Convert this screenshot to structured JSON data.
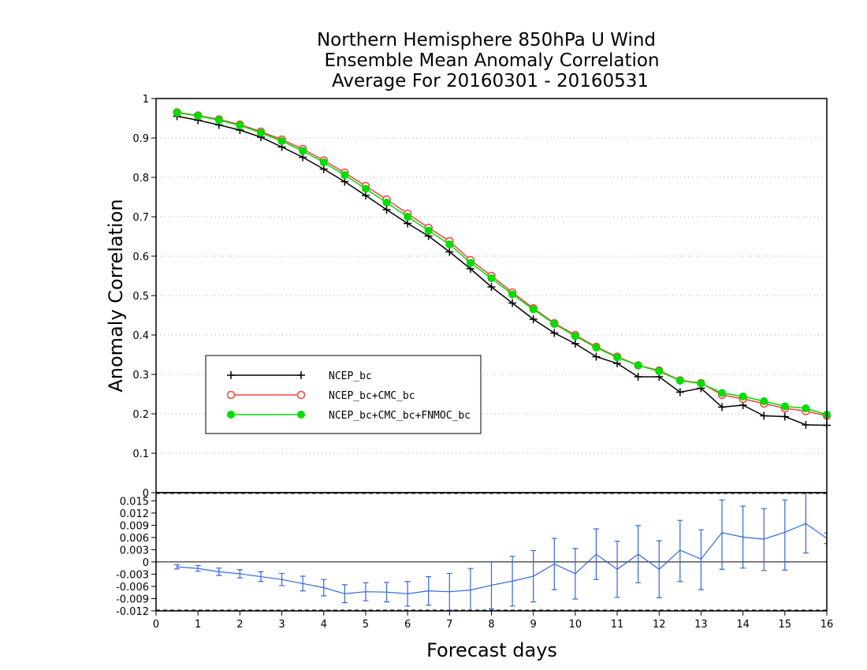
{
  "chart_data": [
    {
      "type": "line",
      "title": [
        "Northern Hemisphere 850hPa U Wind",
        "Ensemble Mean Anomaly Correlation",
        "Average For 20160301 - 20160531"
      ],
      "xlabel": "Forecast days",
      "ylabel": "Anomaly Correlation",
      "xlim": [
        0,
        16
      ],
      "ylim": [
        0,
        1
      ],
      "yticks": [
        "0",
        "0.1",
        "0.2",
        "0.3",
        "0.4",
        "0.5",
        "0.6",
        "0.7",
        "0.8",
        "0.9",
        "1"
      ],
      "grid": true,
      "legend_position": "middle-left",
      "x": [
        0.5,
        1,
        1.5,
        2,
        2.5,
        3,
        3.5,
        4,
        4.5,
        5,
        5.5,
        6,
        6.5,
        7,
        7.5,
        8,
        8.5,
        9,
        9.5,
        10,
        10.5,
        11,
        11.5,
        12,
        12.5,
        13,
        13.5,
        14,
        14.5,
        15,
        15.5,
        16
      ],
      "series": [
        {
          "name": "NCEP_bc",
          "color": "#000000",
          "marker": "plus",
          "values": [
            0.955,
            0.945,
            0.933,
            0.92,
            0.902,
            0.877,
            0.851,
            0.821,
            0.789,
            0.754,
            0.718,
            0.683,
            0.651,
            0.611,
            0.568,
            0.522,
            0.481,
            0.44,
            0.405,
            0.378,
            0.345,
            0.328,
            0.294,
            0.294,
            0.255,
            0.265,
            0.217,
            0.222,
            0.195,
            0.193,
            0.172,
            0.171
          ]
        },
        {
          "name": "NCEP_bc+CMC_bc",
          "color": "#ff4040",
          "marker": "open-circle",
          "values": [
            0.965,
            0.957,
            0.947,
            0.934,
            0.916,
            0.896,
            0.872,
            0.843,
            0.812,
            0.778,
            0.744,
            0.708,
            0.672,
            0.638,
            0.59,
            0.55,
            0.508,
            0.468,
            0.43,
            0.4,
            0.37,
            0.345,
            0.323,
            0.31,
            0.285,
            0.278,
            0.248,
            0.238,
            0.226,
            0.214,
            0.207,
            0.195
          ]
        },
        {
          "name": "NCEP_bc+CMC_bc+FNMOC_bc",
          "color": "#00dd00",
          "marker": "filled-circle",
          "values": [
            0.964,
            0.956,
            0.945,
            0.932,
            0.913,
            0.892,
            0.867,
            0.838,
            0.806,
            0.771,
            0.736,
            0.7,
            0.665,
            0.63,
            0.583,
            0.544,
            0.503,
            0.465,
            0.428,
            0.397,
            0.368,
            0.343,
            0.323,
            0.308,
            0.284,
            0.277,
            0.253,
            0.244,
            0.232,
            0.219,
            0.214,
            0.198
          ]
        }
      ]
    },
    {
      "type": "line",
      "subtype": "errorbar",
      "xlabel": "Forecast days",
      "xlim": [
        0,
        16
      ],
      "xticks": [
        "0",
        "1",
        "2",
        "3",
        "4",
        "5",
        "6",
        "7",
        "8",
        "9",
        "10",
        "11",
        "12",
        "13",
        "14",
        "15",
        "16"
      ],
      "ylim": [
        -0.012,
        0.017
      ],
      "yticks": [
        "-0.012",
        "-0.009",
        "-0.006",
        "-0.003",
        "0",
        "0.003",
        "0.006",
        "0.009",
        "0.012",
        "0.015"
      ],
      "color": "#3366dd",
      "x": [
        0.5,
        1,
        1.5,
        2,
        2.5,
        3,
        3.5,
        4,
        4.5,
        5,
        5.5,
        6,
        6.5,
        7,
        7.5,
        8,
        8.5,
        9,
        9.5,
        10,
        10.5,
        11,
        11.5,
        12,
        12.5,
        13,
        13.5,
        14,
        14.5,
        15,
        15.5,
        16
      ],
      "values": [
        -0.0012,
        -0.0016,
        -0.0024,
        -0.0029,
        -0.0036,
        -0.0043,
        -0.0053,
        -0.0063,
        -0.0078,
        -0.0073,
        -0.0074,
        -0.0078,
        -0.0071,
        -0.0073,
        -0.0069,
        -0.0057,
        -0.0047,
        -0.0035,
        -0.0005,
        -0.0029,
        0.0019,
        -0.0018,
        0.0019,
        -0.0018,
        0.0029,
        0.0007,
        0.0072,
        0.0061,
        0.0056,
        0.0073,
        0.0094,
        0.0058
      ],
      "err_low": [
        -0.0017,
        -0.0023,
        -0.0033,
        -0.0039,
        -0.0048,
        -0.0058,
        -0.0071,
        -0.0083,
        -0.01,
        -0.0095,
        -0.0098,
        -0.0108,
        -0.0106,
        -0.0118,
        -0.0122,
        -0.0115,
        -0.0108,
        -0.0098,
        -0.0068,
        -0.0091,
        -0.0043,
        -0.0087,
        -0.0051,
        -0.0088,
        -0.0048,
        -0.0068,
        -0.0018,
        -0.0015,
        -0.0021,
        -0.002,
        0.0022,
        0.0045
      ],
      "err_high": [
        -0.0007,
        -0.0009,
        -0.0015,
        -0.0019,
        -0.0024,
        -0.0028,
        -0.0035,
        -0.0043,
        -0.0056,
        -0.0051,
        -0.005,
        -0.0048,
        -0.0036,
        -0.0028,
        -0.0016,
        0.0001,
        0.0014,
        0.0028,
        0.0058,
        0.0033,
        0.0081,
        0.0051,
        0.0089,
        0.0052,
        0.0102,
        0.0079,
        0.0152,
        0.0137,
        0.0131,
        0.0152,
        0.017,
        0.0071
      ]
    }
  ]
}
